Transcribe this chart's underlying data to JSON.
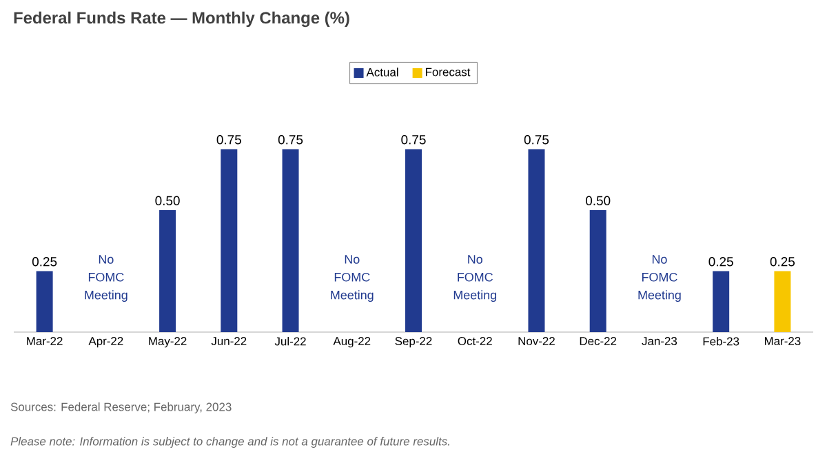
{
  "chart_data": {
    "type": "bar",
    "title": "Federal Funds Rate — Monthly Change (%)",
    "categories": [
      "Mar-22",
      "Apr-22",
      "May-22",
      "Jun-22",
      "Jul-22",
      "Aug-22",
      "Sep-22",
      "Oct-22",
      "Nov-22",
      "Dec-22",
      "Jan-23",
      "Feb-23",
      "Mar-23"
    ],
    "series": [
      {
        "name": "Actual",
        "color": "#213a8f",
        "values": [
          0.25,
          null,
          0.5,
          0.75,
          0.75,
          null,
          0.75,
          null,
          0.75,
          0.5,
          null,
          0.25,
          null
        ],
        "value_labels": [
          "0.25",
          null,
          "0.50",
          "0.75",
          "0.75",
          null,
          "0.75",
          null,
          "0.75",
          "0.50",
          null,
          "0.25",
          null
        ]
      },
      {
        "name": "Forecast",
        "color": "#f7c600",
        "values": [
          null,
          null,
          null,
          null,
          null,
          null,
          null,
          null,
          null,
          null,
          null,
          null,
          0.25
        ],
        "value_labels": [
          null,
          null,
          null,
          null,
          null,
          null,
          null,
          null,
          null,
          null,
          null,
          null,
          "0.25"
        ]
      }
    ],
    "legend": "top",
    "annotations": [
      "No FOMC Meeting",
      "No FOMC Meeting",
      "No FOMC Meeting",
      "No FOMC Meeting",
      "Sources: Federal Reserve; February, 2023",
      "*Please note: Information is subject to change and is not a guarantee of future results.*"
    ]
  }
}
